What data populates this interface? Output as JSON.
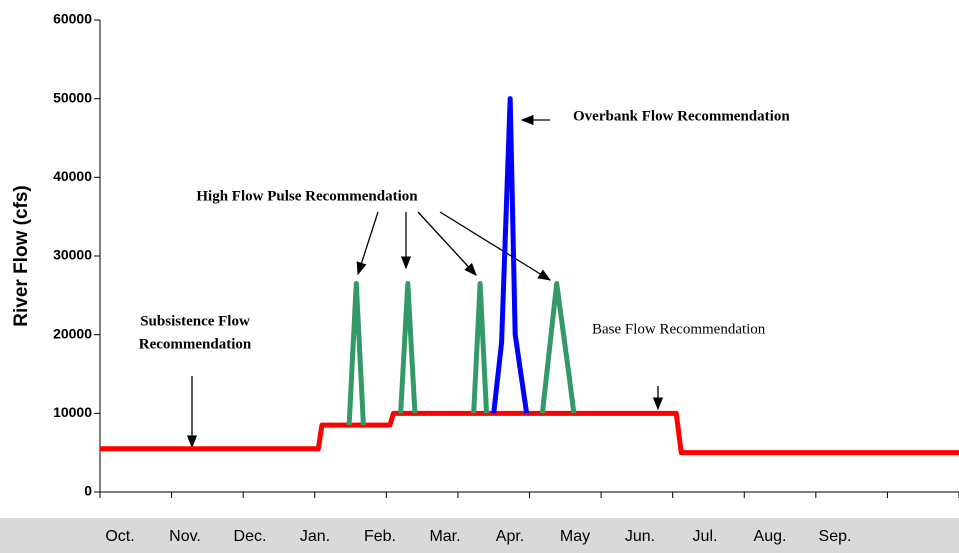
{
  "chart_data": {
    "type": "line",
    "ylabel": "River Flow (cfs)",
    "ylim": [
      0,
      60000
    ],
    "yticks": [
      0,
      10000,
      20000,
      30000,
      40000,
      50000,
      60000
    ],
    "xlim": [
      0,
      12
    ],
    "xticks": [
      0,
      1,
      2,
      3,
      4,
      5,
      6,
      7,
      8,
      9,
      10,
      11,
      12
    ],
    "categories": [
      "Oct.",
      "Nov.",
      "Dec.",
      "Jan.",
      "Feb.",
      "Mar.",
      "Apr.",
      "May",
      "Jun.",
      "Jul.",
      "Aug.",
      "Sep."
    ],
    "series": [
      {
        "color": "#ff0000",
        "x": [
          0,
          3.05,
          3.1,
          4.05,
          4.1,
          8.05,
          8.12,
          12
        ],
        "values": [
          5500,
          5500,
          8500,
          8500,
          10000,
          10000,
          5000,
          5000
        ]
      },
      {
        "color": "#339966",
        "x": [
          3.48,
          3.58,
          3.68
        ],
        "values": [
          8500,
          26500,
          8500
        ]
      },
      {
        "color": "#339966",
        "x": [
          4.2,
          4.3,
          4.4
        ],
        "values": [
          10000,
          26500,
          10000
        ]
      },
      {
        "color": "#339966",
        "x": [
          5.22,
          5.31,
          5.4
        ],
        "values": [
          10000,
          26500,
          10000
        ]
      },
      {
        "color": "#339966",
        "x": [
          6.18,
          6.38,
          6.55,
          6.62
        ],
        "values": [
          10000,
          26500,
          15000,
          10000
        ]
      },
      {
        "color": "#0000ff",
        "x": [
          5.5,
          5.61,
          5.73,
          5.8,
          5.96
        ],
        "values": [
          10000,
          19000,
          50000,
          20000,
          10000
        ]
      }
    ],
    "annotations": {
      "overbank": "Overbank Flow Recommendation",
      "high_pulse": "High Flow Pulse Recommendation",
      "subsistence": [
        "Subsistence Flow",
        "Recommendation"
      ],
      "base": "Base Flow Recommendation"
    }
  }
}
